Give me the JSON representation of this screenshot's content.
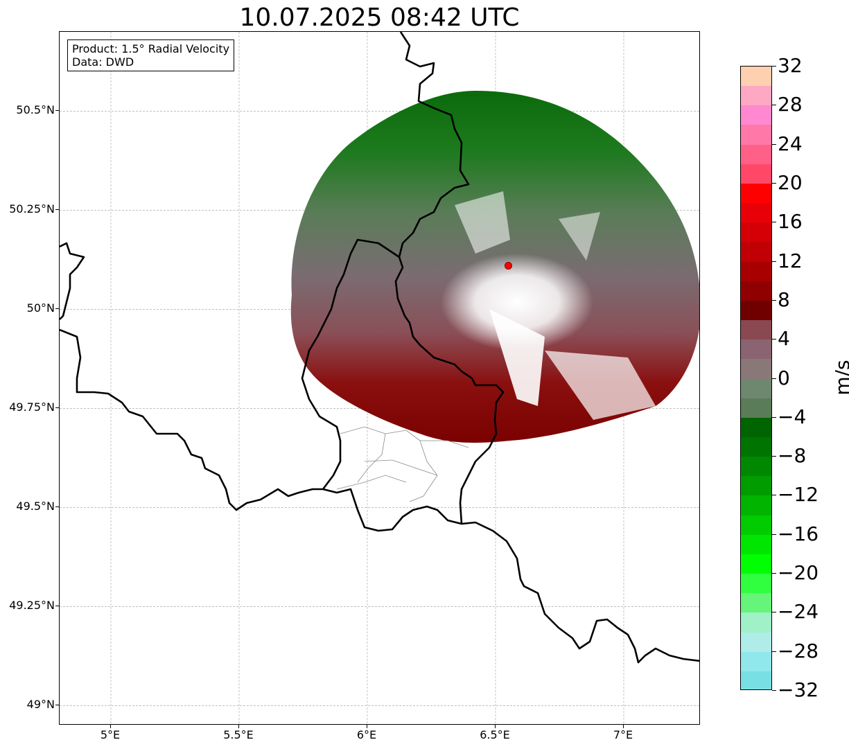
{
  "title": "10.07.2025 08:42 UTC",
  "info_box": {
    "product": "Product: 1.5° Radial Velocity",
    "data_source": "Data: DWD"
  },
  "map": {
    "lon_range": [
      4.8,
      7.3
    ],
    "lat_range": [
      48.95,
      50.7
    ],
    "radar_site": {
      "lon": 6.55,
      "lat": 50.11,
      "marker_color": "#ff0000"
    },
    "lat_ticks": [
      {
        "value": 50.5,
        "label": "50.5°N"
      },
      {
        "value": 50.25,
        "label": "50.25°N"
      },
      {
        "value": 50.0,
        "label": "50°N"
      },
      {
        "value": 49.75,
        "label": "49.75°N"
      },
      {
        "value": 49.5,
        "label": "49.5°N"
      },
      {
        "value": 49.25,
        "label": "49.25°N"
      },
      {
        "value": 49.0,
        "label": "49°N"
      }
    ],
    "lon_ticks": [
      {
        "value": 5.0,
        "label": "5°E"
      },
      {
        "value": 5.5,
        "label": "5.5°E"
      },
      {
        "value": 6.0,
        "label": "6°E"
      },
      {
        "value": 6.5,
        "label": "6.5°E"
      },
      {
        "value": 7.0,
        "label": "7°E"
      }
    ],
    "gridlines": true
  },
  "colorbar": {
    "unit_label": "m/s",
    "min": -32,
    "max": 32,
    "tick_labels": [
      "32",
      "28",
      "24",
      "20",
      "16",
      "12",
      "8",
      "4",
      "0",
      "−4",
      "−8",
      "−12",
      "−16",
      "−20",
      "−24",
      "−28",
      "−32"
    ],
    "colors_top_to_bottom": [
      "#ffd0b0",
      "#ffa8c4",
      "#ff88d0",
      "#ff78a8",
      "#ff6088",
      "#ff4868",
      "#ff0000",
      "#e80008",
      "#d40006",
      "#c00004",
      "#a80000",
      "#900000",
      "#700000",
      "#8a4850",
      "#8a6470",
      "#8a7878",
      "#6e8870",
      "#5a7c58",
      "#006400",
      "#007400",
      "#008800",
      "#009c00",
      "#00b400",
      "#00cc00",
      "#00e600",
      "#00ff00",
      "#30ff40",
      "#66f47a",
      "#a0f0c8",
      "#b0ece8",
      "#90e8ec",
      "#78e0e4"
    ]
  }
}
